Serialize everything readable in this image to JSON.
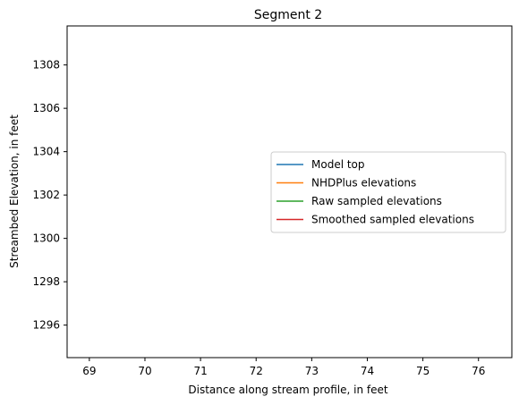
{
  "chart_data": {
    "type": "line",
    "title": "Segment 2",
    "xlabel": "Distance along stream profile, in feet",
    "ylabel": "Streambed Elevation, in feet",
    "xlim": [
      68.6,
      76.6
    ],
    "ylim": [
      1294.5,
      1309.8
    ],
    "xticks": [
      69,
      70,
      71,
      72,
      73,
      74,
      75,
      76
    ],
    "yticks": [
      1296,
      1298,
      1300,
      1302,
      1304,
      1306,
      1308
    ],
    "grid": false,
    "legend_position": "center-right",
    "series": [
      {
        "name": "Model top",
        "color": "#1f77b4",
        "x": [],
        "y": []
      },
      {
        "name": "NHDPlus elevations",
        "color": "#ff7f0e",
        "x": [],
        "y": []
      },
      {
        "name": "Raw sampled elevations",
        "color": "#2ca02c",
        "x": [],
        "y": []
      },
      {
        "name": "Smoothed sampled elevations",
        "color": "#d62728",
        "x": [],
        "y": []
      }
    ]
  }
}
